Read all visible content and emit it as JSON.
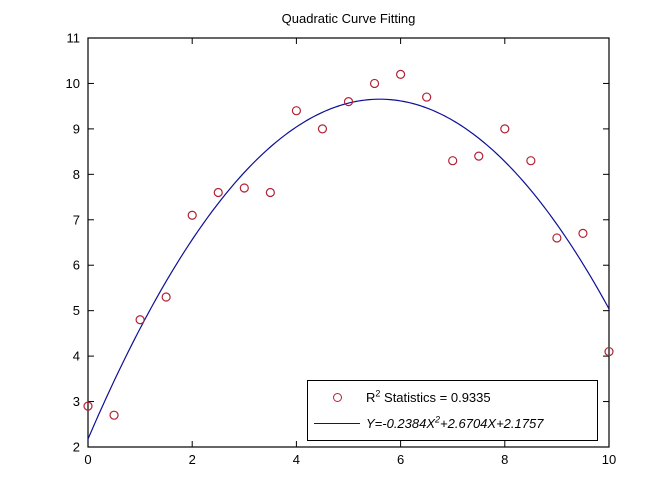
{
  "figure": {
    "background": "#ffffff"
  },
  "chart_data": {
    "type": "scatter",
    "title": "Quadratic Curve Fitting",
    "xlabel": "",
    "ylabel": "",
    "xlim": [
      0,
      10
    ],
    "ylim": [
      2,
      11
    ],
    "x_ticks": [
      0,
      2,
      4,
      6,
      8,
      10
    ],
    "y_ticks": [
      2,
      3,
      4,
      5,
      6,
      7,
      8,
      9,
      10,
      11
    ],
    "grid": false,
    "box": true,
    "tick_direction": "in",
    "legend_position": "lower right",
    "axis_color": "#000000",
    "series": [
      {
        "name": "data-points",
        "type": "scatter",
        "marker": "open-circle",
        "color": "#b22235",
        "x": [
          0,
          0.5,
          1,
          1.5,
          2,
          2.5,
          3,
          3.5,
          4,
          4.5,
          5,
          5.5,
          6,
          6.5,
          7,
          7.5,
          8,
          8.5,
          9,
          9.5,
          10
        ],
        "y": [
          2.9,
          2.7,
          4.8,
          5.3,
          7.1,
          7.6,
          7.7,
          7.6,
          9.4,
          9.0,
          9.6,
          10.0,
          10.2,
          9.7,
          8.3,
          8.4,
          9.0,
          8.3,
          6.6,
          6.7,
          4.1
        ]
      },
      {
        "name": "fit-curve",
        "type": "line",
        "color": "#0f0f96",
        "fit": {
          "kind": "quadratic",
          "a": -0.2384,
          "b": 2.6704,
          "c": 2.1757
        }
      }
    ],
    "r_squared": 0.9335,
    "legend": [
      {
        "marker": "circle",
        "label_base": "R",
        "label_sup": "2",
        "label_rest": " Statistics = 0.9335"
      },
      {
        "marker": "line",
        "label_pre": "Y=-0.2384X",
        "label_sup": "2",
        "label_post": "+2.6704X+2.1757",
        "italic": true
      }
    ]
  }
}
